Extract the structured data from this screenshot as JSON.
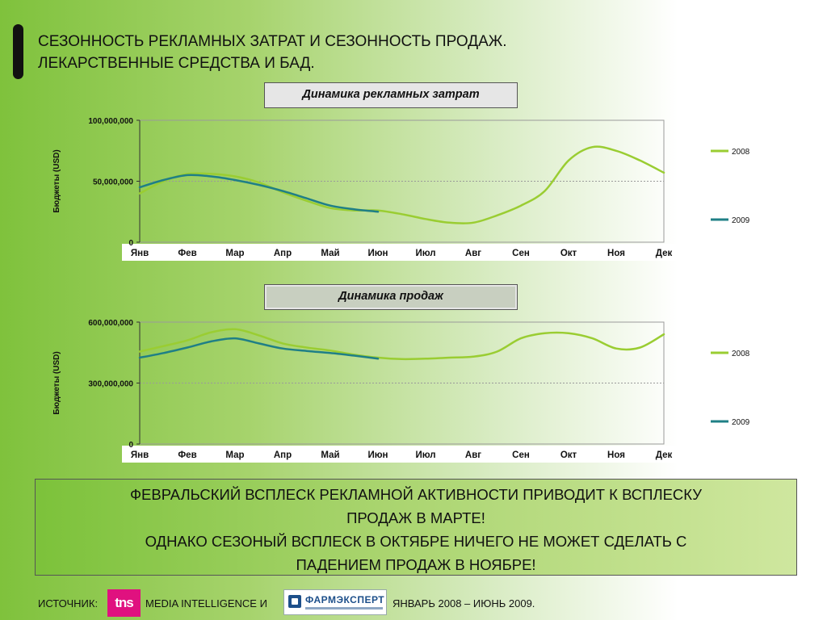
{
  "title": {
    "line1": "СЕЗОННОСТЬ РЕКЛАМНЫХ ЗАТРАТ И СЕЗОННОСТЬ ПРОДАЖ.",
    "line2": "ЛЕКАРСТВЕННЫЕ СРЕДСТВА И БАД."
  },
  "colors": {
    "series_2008": "#9acd32",
    "series_2009": "#1f7f86",
    "grid": "#9a9a9a",
    "axis": "#333333"
  },
  "chart_data": [
    {
      "type": "line",
      "title": "Динамика рекламных затрат",
      "ylabel": "Бюджеты (USD)",
      "ylim": [
        0,
        100000000
      ],
      "yticks": [
        0,
        50000000,
        100000000
      ],
      "ytick_labels": [
        "0",
        "50,000,000",
        "100,000,000"
      ],
      "categories": [
        "Янв",
        "Фев",
        "Мар",
        "Апр",
        "Май",
        "Июн",
        "Июл",
        "Авг",
        "Сен",
        "Окт",
        "Ноя",
        "Дек"
      ],
      "legend_position": "right",
      "series": [
        {
          "name": "2008",
          "color": "#9acd32",
          "x": [
            0,
            0.5,
            1,
            1.5,
            2,
            2.5,
            3,
            3.5,
            4,
            4.5,
            5,
            5.5,
            6,
            6.5,
            7,
            7.5,
            8,
            8.5,
            9,
            9.5,
            10,
            10.5,
            11
          ],
          "values": [
            40000000,
            50000000,
            56000000,
            56000000,
            54000000,
            49000000,
            41000000,
            34000000,
            28000000,
            26000000,
            26000000,
            23000000,
            19000000,
            16000000,
            16000000,
            22000000,
            30000000,
            42000000,
            67000000,
            78000000,
            75000000,
            67000000,
            57000000
          ]
        },
        {
          "name": "2009",
          "color": "#1f7f86",
          "x": [
            0,
            0.5,
            1,
            1.5,
            2,
            2.5,
            3,
            3.5,
            4,
            4.5,
            5
          ],
          "values": [
            45000000,
            51000000,
            55000000,
            54000000,
            51000000,
            47000000,
            42000000,
            36000000,
            30000000,
            27000000,
            25000000
          ]
        }
      ]
    },
    {
      "type": "line",
      "title": "Динамика продаж",
      "ylabel": "Бюджеты (USD)",
      "ylim": [
        0,
        600000000
      ],
      "yticks": [
        0,
        300000000,
        600000000
      ],
      "ytick_labels": [
        "0",
        "300,000,000",
        "600,000,000"
      ],
      "categories": [
        "Янв",
        "Фев",
        "Мар",
        "Апр",
        "Май",
        "Июн",
        "Июл",
        "Авг",
        "Сен",
        "Окт",
        "Ноя",
        "Дек"
      ],
      "legend_position": "right",
      "series": [
        {
          "name": "2008",
          "color": "#9acd32",
          "x": [
            0,
            0.5,
            1,
            1.5,
            2,
            2.5,
            3,
            3.5,
            4,
            4.5,
            5,
            5.5,
            6,
            6.5,
            7,
            7.5,
            8,
            8.5,
            9,
            9.5,
            10,
            10.5,
            11
          ],
          "values": [
            455000000,
            482000000,
            510000000,
            550000000,
            565000000,
            535000000,
            495000000,
            475000000,
            460000000,
            440000000,
            425000000,
            418000000,
            420000000,
            425000000,
            430000000,
            455000000,
            520000000,
            545000000,
            545000000,
            520000000,
            470000000,
            475000000,
            540000000
          ]
        },
        {
          "name": "2009",
          "color": "#1f7f86",
          "x": [
            0,
            0.5,
            1,
            1.5,
            2,
            2.5,
            3,
            3.5,
            4,
            4.5,
            5
          ],
          "values": [
            425000000,
            448000000,
            475000000,
            505000000,
            520000000,
            495000000,
            470000000,
            458000000,
            448000000,
            435000000,
            420000000
          ]
        }
      ]
    }
  ],
  "note": {
    "line1": "ФЕВРАЛЬСКИЙ ВСПЛЕСК РЕКЛАМНОЙ АКТИВНОСТИ ПРИВОДИТ К ВСПЛЕСКУ",
    "line2": "ПРОДАЖ В МАРТЕ!",
    "line3": "ОДНАКО СЕЗОНЫЙ ВСПЛЕСК В ОКТЯБРЕ НИЧЕГО НЕ МОЖЕТ СДЕЛАТЬ С",
    "line4": "ПАДЕНИЕМ ПРОДАЖ В НОЯБРЕ!"
  },
  "footer": {
    "source_label": "ИСТОЧНИК:",
    "logo1_text": "tns",
    "middle": "MEDIA INTELLIGENCE И",
    "logo2_text": "ФАРМЭКСПЕРТ",
    "period": "ЯНВАРЬ 2008 – ИЮНЬ 2009."
  }
}
